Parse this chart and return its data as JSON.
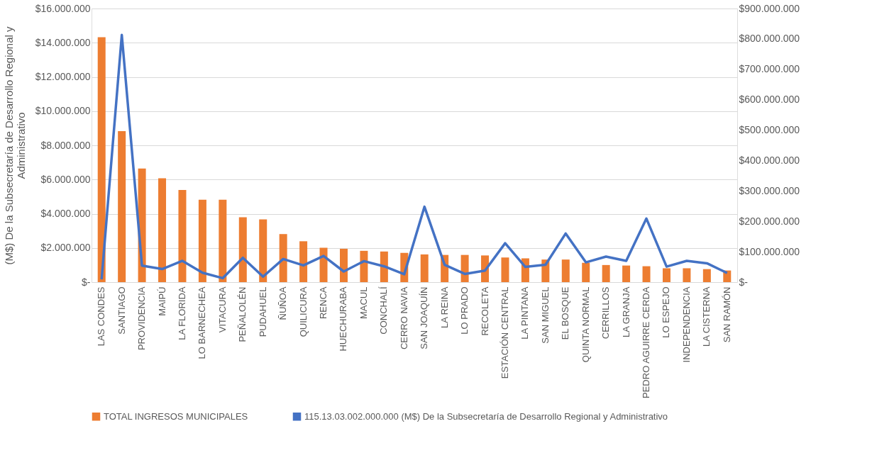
{
  "chart_data": {
    "type": "bar",
    "ylabel": "(M$) De la Subsecretaría de Desarrollo Regional y Administrativo",
    "categories": [
      "LAS CONDES",
      "SANTIAGO",
      "PROVIDENCIA",
      "MAIPÚ",
      "LA FLORIDA",
      "LO BARNECHEA",
      "VITACURA",
      "PEÑALOLÉN",
      "PUDAHUEL",
      "ÑUÑOA",
      "QUILICURA",
      "RENCA",
      "HUECHURABA",
      "MACUL",
      "CONCHALÍ",
      "CERRO NAVIA",
      "SAN JOAQUÍN",
      "LA REINA",
      "LO PRADO",
      "RECOLETA",
      "ESTACIÓN CENTRAL",
      "LA PINTANA",
      "SAN MIGUEL",
      "EL BOSQUE",
      "QUINTA NORMAL",
      "CERRILLOS",
      "LA GRANJA",
      "PEDRO AGUIRRE CERDA",
      "LO ESPEJO",
      "INDEPENDENCIA",
      "LA CISTERNA",
      "SAN RAMÓN"
    ],
    "series": [
      {
        "name": "TOTAL INGRESOS MUNICIPALES",
        "color": "#ed7d31",
        "values": [
          14320000,
          8830000,
          6640000,
          6070000,
          5390000,
          4820000,
          4820000,
          3790000,
          3670000,
          2810000,
          2390000,
          2010000,
          1950000,
          1830000,
          1790000,
          1710000,
          1620000,
          1590000,
          1590000,
          1560000,
          1440000,
          1390000,
          1320000,
          1320000,
          1130000,
          1000000,
          970000,
          930000,
          810000,
          810000,
          760000,
          680000
        ]
      },
      {
        "name": "115.13.03.002.000.000 (M$) De la Subsecretaría de Desarrollo Regional y Administrativo",
        "type": "line",
        "axis": "y2",
        "color": "#4472c4",
        "values": [
          9000000,
          813000000,
          54000000,
          43000000,
          70000000,
          31000000,
          13000000,
          80000000,
          18000000,
          76000000,
          55000000,
          86000000,
          35000000,
          69000000,
          52000000,
          26000000,
          248000000,
          57000000,
          27000000,
          38000000,
          128000000,
          50000000,
          57000000,
          160000000,
          65000000,
          84000000,
          70000000,
          209000000,
          51000000,
          70000000,
          62000000,
          30000000
        ]
      }
    ],
    "ylim": [
      0,
      16000000
    ],
    "yticks": [
      {
        "value": 0,
        "label": "$-"
      },
      {
        "value": 2000000,
        "label": "$2.000.000"
      },
      {
        "value": 4000000,
        "label": "$4.000.000"
      },
      {
        "value": 6000000,
        "label": "$6.000.000"
      },
      {
        "value": 8000000,
        "label": "$8.000.000"
      },
      {
        "value": 10000000,
        "label": "$10.000.000"
      },
      {
        "value": 12000000,
        "label": "$12.000.000"
      },
      {
        "value": 14000000,
        "label": "$14.000.000"
      },
      {
        "value": 16000000,
        "label": "$16.000.000"
      }
    ],
    "y2lim": [
      0,
      900000000
    ],
    "y2ticks": [
      {
        "value": 0,
        "label": "$-"
      },
      {
        "value": 100000000,
        "label": "$100.000.000"
      },
      {
        "value": 200000000,
        "label": "$200.000.000"
      },
      {
        "value": 300000000,
        "label": "$300.000.000"
      },
      {
        "value": 400000000,
        "label": "$400.000.000"
      },
      {
        "value": 500000000,
        "label": "$500.000.000"
      },
      {
        "value": 600000000,
        "label": "$600.000.000"
      },
      {
        "value": 700000000,
        "label": "$700.000.000"
      },
      {
        "value": 800000000,
        "label": "$800.000.000"
      },
      {
        "value": 900000000,
        "label": "$900.000.000"
      }
    ],
    "grid": "y",
    "legend": "bottom",
    "line_style": "solid",
    "marker": "none"
  }
}
